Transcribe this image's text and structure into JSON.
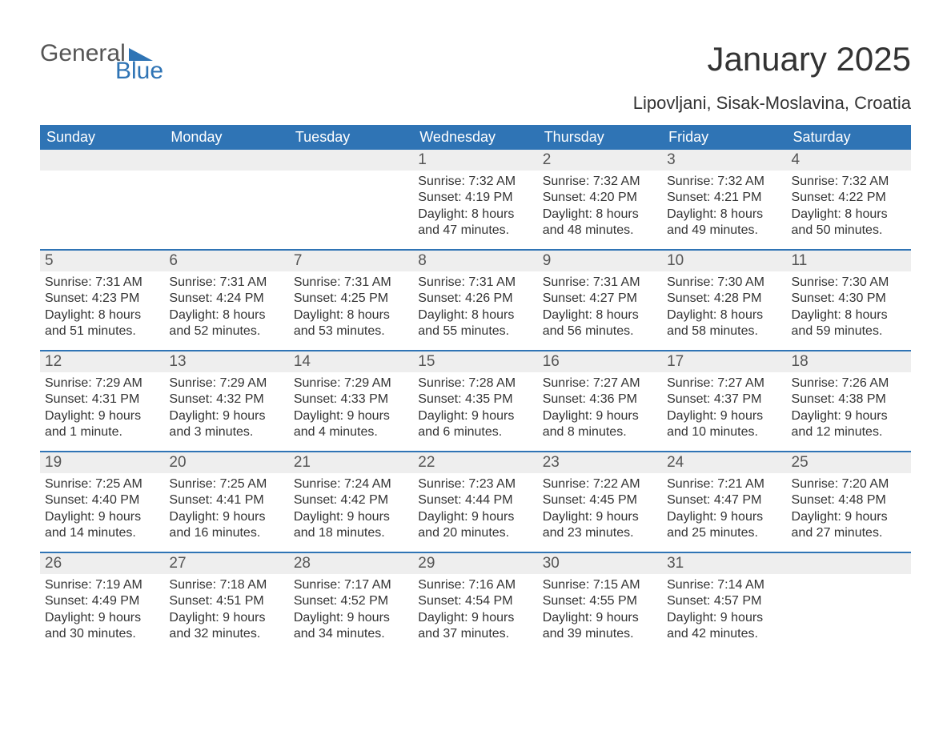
{
  "logo": {
    "text1": "General",
    "text2": "Blue",
    "accent_color": "#2f74b5"
  },
  "title": "January 2025",
  "location": "Lipovljani, Sisak-Moslavina, Croatia",
  "days_of_week": [
    "Sunday",
    "Monday",
    "Tuesday",
    "Wednesday",
    "Thursday",
    "Friday",
    "Saturday"
  ],
  "colors": {
    "header_bg": "#2f74b5",
    "header_text": "#ffffff",
    "daynum_bg": "#eeeeee",
    "daynum_text": "#555555",
    "body_text": "#333333",
    "week_divider": "#2f74b5",
    "page_bg": "#ffffff"
  },
  "typography": {
    "title_fontsize": 42,
    "location_fontsize": 22,
    "dow_fontsize": 18,
    "daynum_fontsize": 19,
    "detail_fontsize": 16
  },
  "weeks": [
    [
      {
        "day": "",
        "sunrise": "",
        "sunset": "",
        "daylight": ""
      },
      {
        "day": "",
        "sunrise": "",
        "sunset": "",
        "daylight": ""
      },
      {
        "day": "",
        "sunrise": "",
        "sunset": "",
        "daylight": ""
      },
      {
        "day": "1",
        "sunrise": "Sunrise: 7:32 AM",
        "sunset": "Sunset: 4:19 PM",
        "daylight": "Daylight: 8 hours and 47 minutes."
      },
      {
        "day": "2",
        "sunrise": "Sunrise: 7:32 AM",
        "sunset": "Sunset: 4:20 PM",
        "daylight": "Daylight: 8 hours and 48 minutes."
      },
      {
        "day": "3",
        "sunrise": "Sunrise: 7:32 AM",
        "sunset": "Sunset: 4:21 PM",
        "daylight": "Daylight: 8 hours and 49 minutes."
      },
      {
        "day": "4",
        "sunrise": "Sunrise: 7:32 AM",
        "sunset": "Sunset: 4:22 PM",
        "daylight": "Daylight: 8 hours and 50 minutes."
      }
    ],
    [
      {
        "day": "5",
        "sunrise": "Sunrise: 7:31 AM",
        "sunset": "Sunset: 4:23 PM",
        "daylight": "Daylight: 8 hours and 51 minutes."
      },
      {
        "day": "6",
        "sunrise": "Sunrise: 7:31 AM",
        "sunset": "Sunset: 4:24 PM",
        "daylight": "Daylight: 8 hours and 52 minutes."
      },
      {
        "day": "7",
        "sunrise": "Sunrise: 7:31 AM",
        "sunset": "Sunset: 4:25 PM",
        "daylight": "Daylight: 8 hours and 53 minutes."
      },
      {
        "day": "8",
        "sunrise": "Sunrise: 7:31 AM",
        "sunset": "Sunset: 4:26 PM",
        "daylight": "Daylight: 8 hours and 55 minutes."
      },
      {
        "day": "9",
        "sunrise": "Sunrise: 7:31 AM",
        "sunset": "Sunset: 4:27 PM",
        "daylight": "Daylight: 8 hours and 56 minutes."
      },
      {
        "day": "10",
        "sunrise": "Sunrise: 7:30 AM",
        "sunset": "Sunset: 4:28 PM",
        "daylight": "Daylight: 8 hours and 58 minutes."
      },
      {
        "day": "11",
        "sunrise": "Sunrise: 7:30 AM",
        "sunset": "Sunset: 4:30 PM",
        "daylight": "Daylight: 8 hours and 59 minutes."
      }
    ],
    [
      {
        "day": "12",
        "sunrise": "Sunrise: 7:29 AM",
        "sunset": "Sunset: 4:31 PM",
        "daylight": "Daylight: 9 hours and 1 minute."
      },
      {
        "day": "13",
        "sunrise": "Sunrise: 7:29 AM",
        "sunset": "Sunset: 4:32 PM",
        "daylight": "Daylight: 9 hours and 3 minutes."
      },
      {
        "day": "14",
        "sunrise": "Sunrise: 7:29 AM",
        "sunset": "Sunset: 4:33 PM",
        "daylight": "Daylight: 9 hours and 4 minutes."
      },
      {
        "day": "15",
        "sunrise": "Sunrise: 7:28 AM",
        "sunset": "Sunset: 4:35 PM",
        "daylight": "Daylight: 9 hours and 6 minutes."
      },
      {
        "day": "16",
        "sunrise": "Sunrise: 7:27 AM",
        "sunset": "Sunset: 4:36 PM",
        "daylight": "Daylight: 9 hours and 8 minutes."
      },
      {
        "day": "17",
        "sunrise": "Sunrise: 7:27 AM",
        "sunset": "Sunset: 4:37 PM",
        "daylight": "Daylight: 9 hours and 10 minutes."
      },
      {
        "day": "18",
        "sunrise": "Sunrise: 7:26 AM",
        "sunset": "Sunset: 4:38 PM",
        "daylight": "Daylight: 9 hours and 12 minutes."
      }
    ],
    [
      {
        "day": "19",
        "sunrise": "Sunrise: 7:25 AM",
        "sunset": "Sunset: 4:40 PM",
        "daylight": "Daylight: 9 hours and 14 minutes."
      },
      {
        "day": "20",
        "sunrise": "Sunrise: 7:25 AM",
        "sunset": "Sunset: 4:41 PM",
        "daylight": "Daylight: 9 hours and 16 minutes."
      },
      {
        "day": "21",
        "sunrise": "Sunrise: 7:24 AM",
        "sunset": "Sunset: 4:42 PM",
        "daylight": "Daylight: 9 hours and 18 minutes."
      },
      {
        "day": "22",
        "sunrise": "Sunrise: 7:23 AM",
        "sunset": "Sunset: 4:44 PM",
        "daylight": "Daylight: 9 hours and 20 minutes."
      },
      {
        "day": "23",
        "sunrise": "Sunrise: 7:22 AM",
        "sunset": "Sunset: 4:45 PM",
        "daylight": "Daylight: 9 hours and 23 minutes."
      },
      {
        "day": "24",
        "sunrise": "Sunrise: 7:21 AM",
        "sunset": "Sunset: 4:47 PM",
        "daylight": "Daylight: 9 hours and 25 minutes."
      },
      {
        "day": "25",
        "sunrise": "Sunrise: 7:20 AM",
        "sunset": "Sunset: 4:48 PM",
        "daylight": "Daylight: 9 hours and 27 minutes."
      }
    ],
    [
      {
        "day": "26",
        "sunrise": "Sunrise: 7:19 AM",
        "sunset": "Sunset: 4:49 PM",
        "daylight": "Daylight: 9 hours and 30 minutes."
      },
      {
        "day": "27",
        "sunrise": "Sunrise: 7:18 AM",
        "sunset": "Sunset: 4:51 PM",
        "daylight": "Daylight: 9 hours and 32 minutes."
      },
      {
        "day": "28",
        "sunrise": "Sunrise: 7:17 AM",
        "sunset": "Sunset: 4:52 PM",
        "daylight": "Daylight: 9 hours and 34 minutes."
      },
      {
        "day": "29",
        "sunrise": "Sunrise: 7:16 AM",
        "sunset": "Sunset: 4:54 PM",
        "daylight": "Daylight: 9 hours and 37 minutes."
      },
      {
        "day": "30",
        "sunrise": "Sunrise: 7:15 AM",
        "sunset": "Sunset: 4:55 PM",
        "daylight": "Daylight: 9 hours and 39 minutes."
      },
      {
        "day": "31",
        "sunrise": "Sunrise: 7:14 AM",
        "sunset": "Sunset: 4:57 PM",
        "daylight": "Daylight: 9 hours and 42 minutes."
      },
      {
        "day": "",
        "sunrise": "",
        "sunset": "",
        "daylight": ""
      }
    ]
  ]
}
